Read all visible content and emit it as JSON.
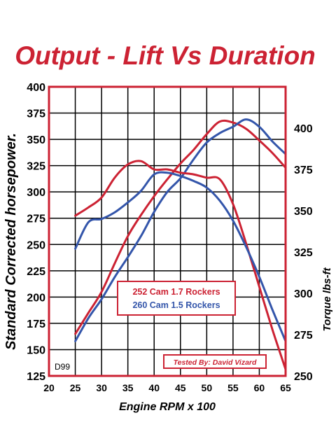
{
  "chart_data": {
    "type": "line",
    "title": "Output - Lift Vs Duration",
    "xlabel": "Engine RPM x 100",
    "ylabel_left": "Standard Corrected horsepower.",
    "ylabel_right": "Torque lbs-ft",
    "xlim": [
      20,
      65
    ],
    "ylim_left": [
      125,
      400
    ],
    "ylim_right": [
      250,
      425
    ],
    "x_ticks": [
      20,
      25,
      30,
      35,
      40,
      45,
      50,
      55,
      60,
      65
    ],
    "y_left_ticks": [
      125,
      150,
      175,
      200,
      225,
      250,
      275,
      300,
      325,
      350,
      375,
      400
    ],
    "y_right_ticks": [
      250,
      275,
      300,
      325,
      350,
      375,
      400
    ],
    "grid": true,
    "corner_label": "D99",
    "tested_by": "Tested By: David Vizard",
    "legend": [
      "252 Cam 1.7 Rockers",
      "260 Cam 1.5 Rockers"
    ],
    "series": [
      {
        "name": "252 Cam 1.7 Rockers",
        "measure": "horsepower",
        "axis": "left",
        "color": "#cc2233",
        "x": [
          25,
          27.5,
          30,
          32.5,
          35,
          37.5,
          40,
          42.5,
          45,
          47.5,
          50,
          52.5,
          55,
          57.5,
          60,
          62.5,
          65
        ],
        "values": [
          165,
          185,
          205,
          232,
          258,
          278,
          296,
          312,
          327,
          340,
          355,
          367,
          366,
          360,
          349,
          337,
          323
        ]
      },
      {
        "name": "260 Cam 1.5 Rockers",
        "measure": "horsepower",
        "axis": "left",
        "color": "#3355aa",
        "x": [
          25,
          27.5,
          30,
          32.5,
          35,
          37.5,
          40,
          42.5,
          45,
          47.5,
          50,
          52.5,
          55,
          57.5,
          60,
          62.5,
          65
        ],
        "values": [
          158,
          180,
          198,
          219,
          238,
          258,
          281,
          300,
          313,
          331,
          347,
          356,
          362,
          369,
          362,
          348,
          336
        ]
      },
      {
        "name": "252 Cam 1.7 Rockers",
        "measure": "torque",
        "axis": "right",
        "color": "#cc2233",
        "x": [
          25,
          27.5,
          30,
          32.5,
          35,
          37.5,
          40,
          42.5,
          45,
          47.5,
          50,
          52.5,
          55,
          57.5,
          60,
          62.5,
          65
        ],
        "values": [
          347,
          352,
          358,
          370,
          378,
          380,
          375,
          375,
          373,
          372,
          370,
          369,
          354,
          330,
          304,
          278,
          254
        ]
      },
      {
        "name": "260 Cam 1.5 Rockers",
        "measure": "torque",
        "axis": "right",
        "color": "#3355aa",
        "x": [
          25,
          27.5,
          30,
          32.5,
          35,
          37.5,
          40,
          42.5,
          45,
          47.5,
          50,
          52.5,
          55,
          57.5,
          60,
          62.5,
          65
        ],
        "values": [
          327,
          343,
          345,
          349,
          355,
          362,
          372,
          373,
          371,
          368,
          364,
          356,
          344,
          328,
          310,
          290,
          271
        ]
      }
    ]
  },
  "colors": {
    "title": "#cc2233",
    "frame": "#cc2233",
    "grid": "#000000",
    "text": "#000000",
    "series_red": "#cc2233",
    "series_blue": "#3355aa"
  }
}
